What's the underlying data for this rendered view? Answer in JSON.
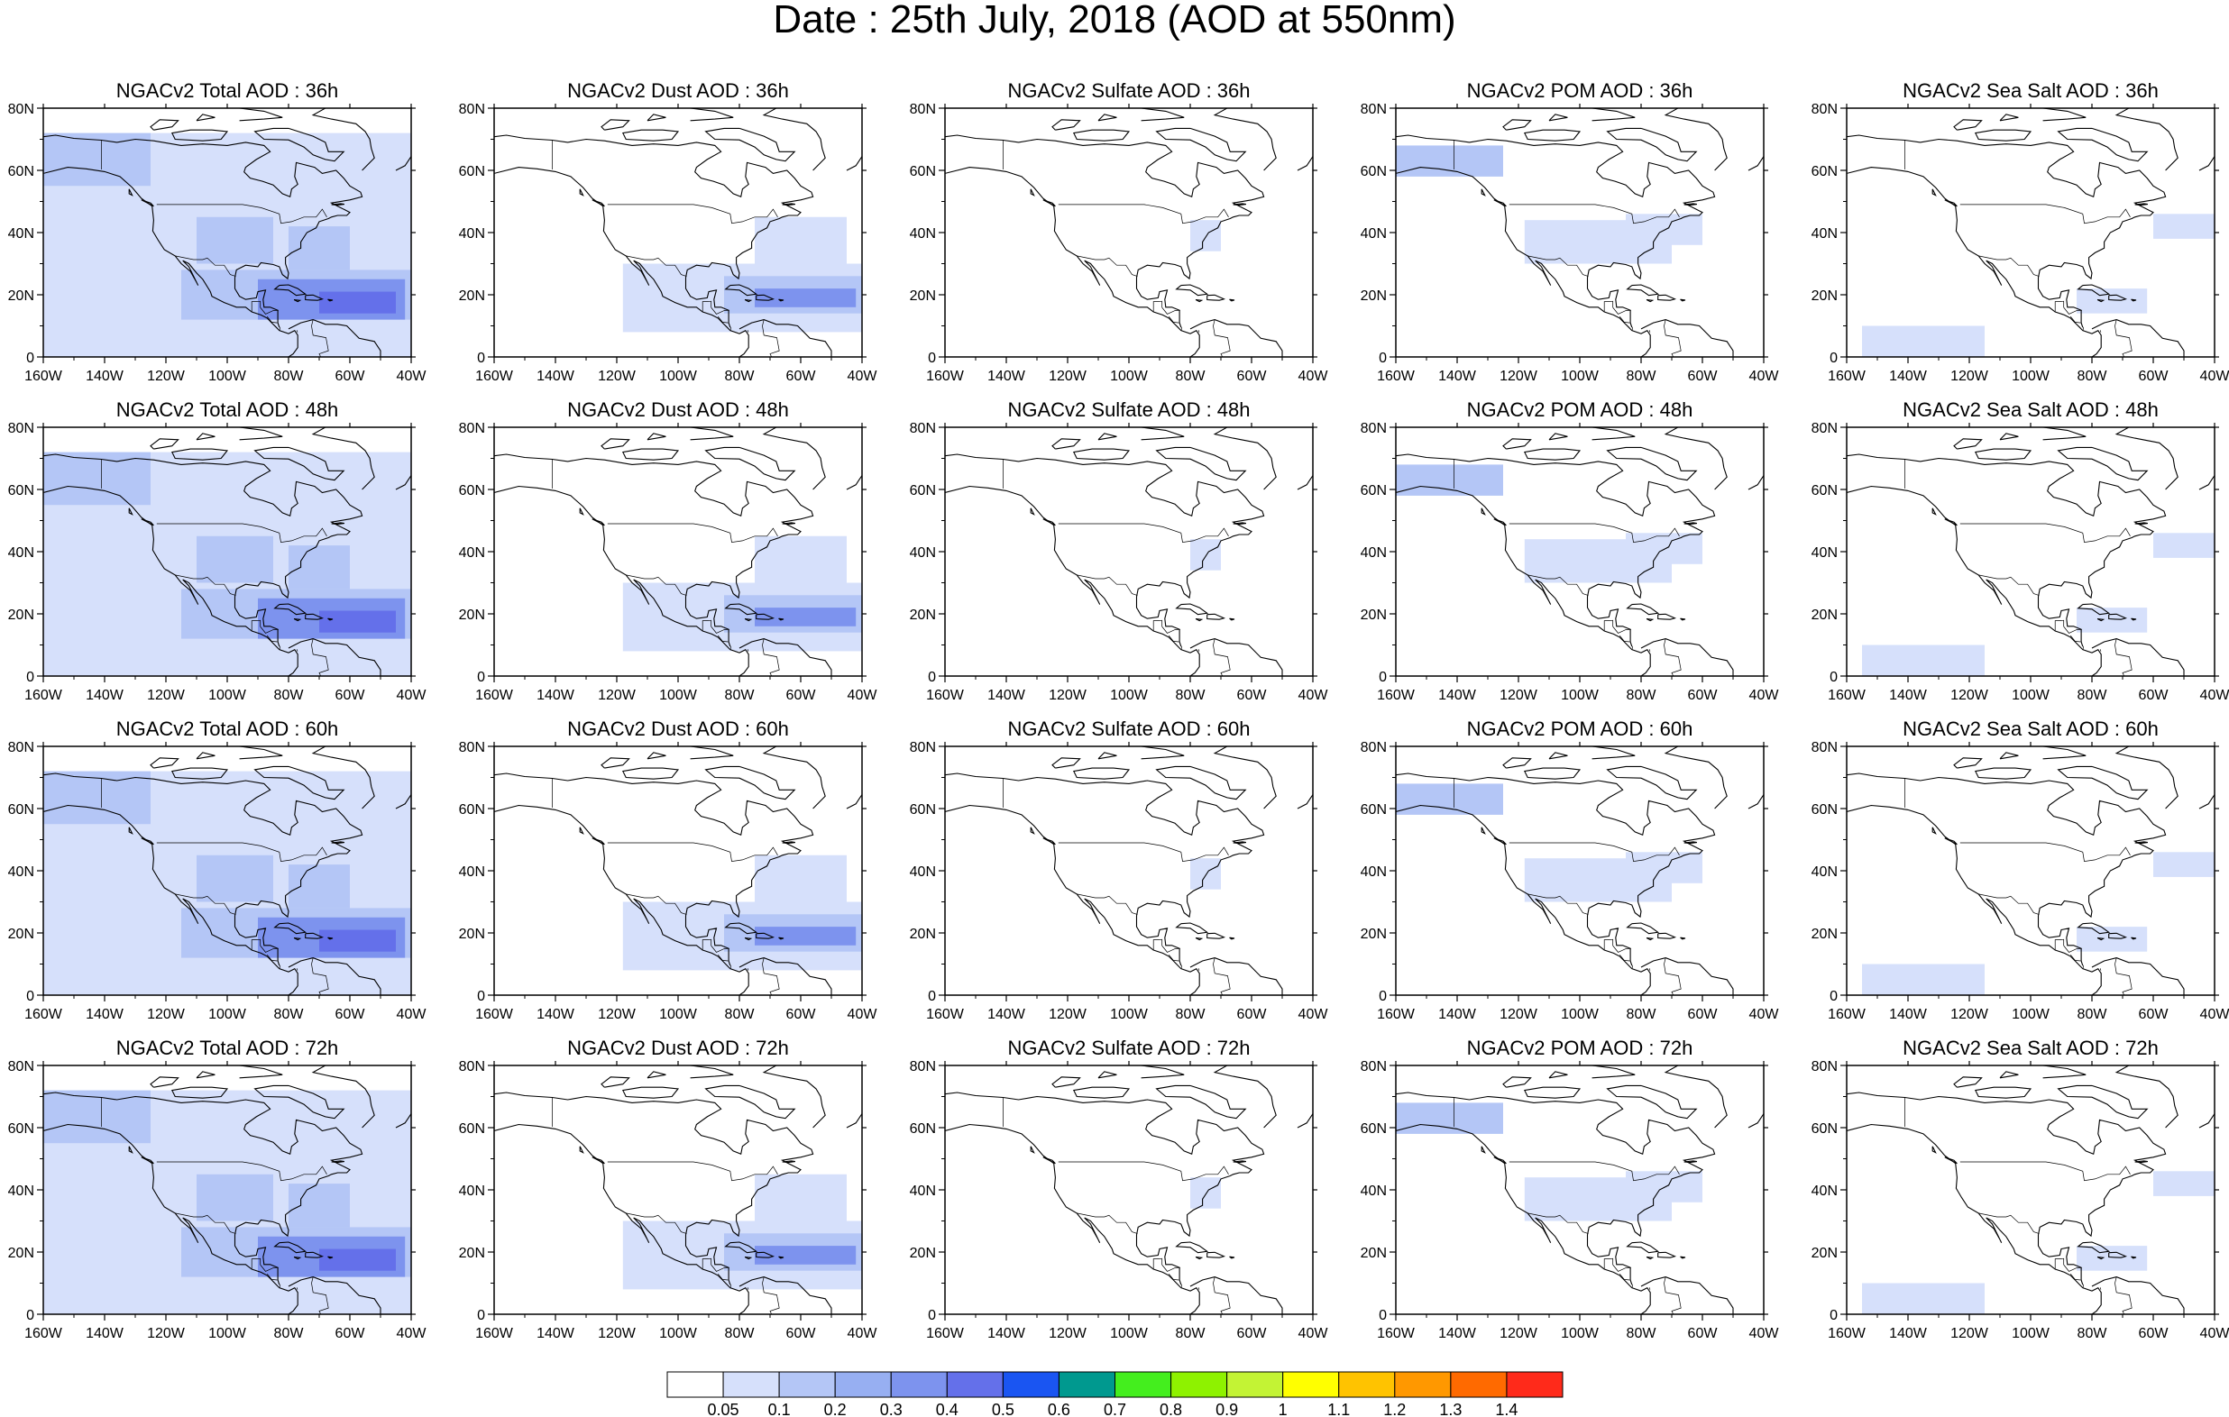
{
  "title": "Date : 25th July, 2018 (AOD at 550nm)",
  "map": {
    "lon_range": [
      -160,
      -40
    ],
    "lat_range": [
      0,
      80
    ],
    "lon_ticks": [
      "160W",
      "140W",
      "120W",
      "100W",
      "80W",
      "60W",
      "40W"
    ],
    "lat_ticks": [
      "0",
      "20N",
      "40N",
      "60N",
      "80N"
    ],
    "coastline_color": "#000000"
  },
  "rows": [
    "36h",
    "48h",
    "60h",
    "72h"
  ],
  "columns": [
    {
      "species": "Total AOD",
      "key": "total"
    },
    {
      "species": "Dust AOD",
      "key": "dust"
    },
    {
      "species": "Sulfate AOD",
      "key": "sulfate"
    },
    {
      "species": "POM AOD",
      "key": "pom"
    },
    {
      "species": "Sea Salt AOD",
      "key": "seasalt"
    }
  ],
  "panel_titles": [
    [
      "NGACv2 Total AOD : 36h",
      "NGACv2 Dust AOD : 36h",
      "NGACv2 Sulfate AOD : 36h",
      "NGACv2 POM AOD : 36h",
      "NGACv2 Sea Salt AOD : 36h"
    ],
    [
      "NGACv2 Total AOD : 48h",
      "NGACv2 Dust AOD : 48h",
      "NGACv2 Sulfate AOD : 48h",
      "NGACv2 POM AOD : 48h",
      "NGACv2 Sea Salt AOD : 48h"
    ],
    [
      "NGACv2 Total AOD : 60h",
      "NGACv2 Dust AOD : 60h",
      "NGACv2 Sulfate AOD : 60h",
      "NGACv2 POM AOD : 60h",
      "NGACv2 Sea Salt AOD : 60h"
    ],
    [
      "NGACv2 Total AOD : 72h",
      "NGACv2 Dust AOD : 72h",
      "NGACv2 Sulfate AOD : 72h",
      "NGACv2 POM AOD : 72h",
      "NGACv2 Sea Salt  AOD : 72h"
    ]
  ],
  "colorbar": {
    "labels": [
      "0.05",
      "0.1",
      "0.2",
      "0.3",
      "0.4",
      "0.5",
      "0.6",
      "0.7",
      "0.8",
      "0.9",
      "1",
      "1.1",
      "1.2",
      "1.3",
      "1.4"
    ],
    "colors": [
      "#ffffff",
      "#d6e0fb",
      "#b4c6f6",
      "#97aff2",
      "#7d93ee",
      "#6470ea",
      "#1a55f2",
      "#00998f",
      "#44ee1e",
      "#8ef200",
      "#c3f334",
      "#ffff00",
      "#ffc300",
      "#ff9800",
      "#ff6a00",
      "#ff2a1a"
    ]
  },
  "chart_data": {
    "type": "heatmap",
    "description_units": "AOD at 550nm, coarse regions (lon_min, lon_max, lat_min, lat_max, value)",
    "fields": {
      "total": [
        [
          -160,
          -40,
          0,
          72,
          0.08
        ],
        [
          -160,
          -125,
          55,
          72,
          0.15
        ],
        [
          -115,
          -40,
          12,
          28,
          0.15
        ],
        [
          -90,
          -42,
          12,
          25,
          0.3
        ],
        [
          -70,
          -45,
          14,
          21,
          0.45
        ],
        [
          -80,
          -60,
          28,
          42,
          0.12
        ],
        [
          -110,
          -85,
          30,
          45,
          0.12
        ]
      ],
      "dust": [
        [
          -118,
          -40,
          8,
          30,
          0.08
        ],
        [
          -85,
          -40,
          14,
          26,
          0.15
        ],
        [
          -75,
          -42,
          16,
          22,
          0.3
        ],
        [
          -75,
          -45,
          30,
          45,
          0.07
        ]
      ],
      "sulfate": [
        [
          -80,
          -70,
          34,
          44,
          0.06
        ]
      ],
      "pom": [
        [
          -160,
          -125,
          58,
          68,
          0.15
        ],
        [
          -118,
          -70,
          30,
          44,
          0.08
        ],
        [
          -85,
          -60,
          36,
          46,
          0.08
        ]
      ],
      "seasalt": [
        [
          -155,
          -115,
          0,
          10,
          0.07
        ],
        [
          -85,
          -62,
          14,
          22,
          0.07
        ],
        [
          -60,
          -40,
          38,
          46,
          0.07
        ]
      ]
    }
  }
}
